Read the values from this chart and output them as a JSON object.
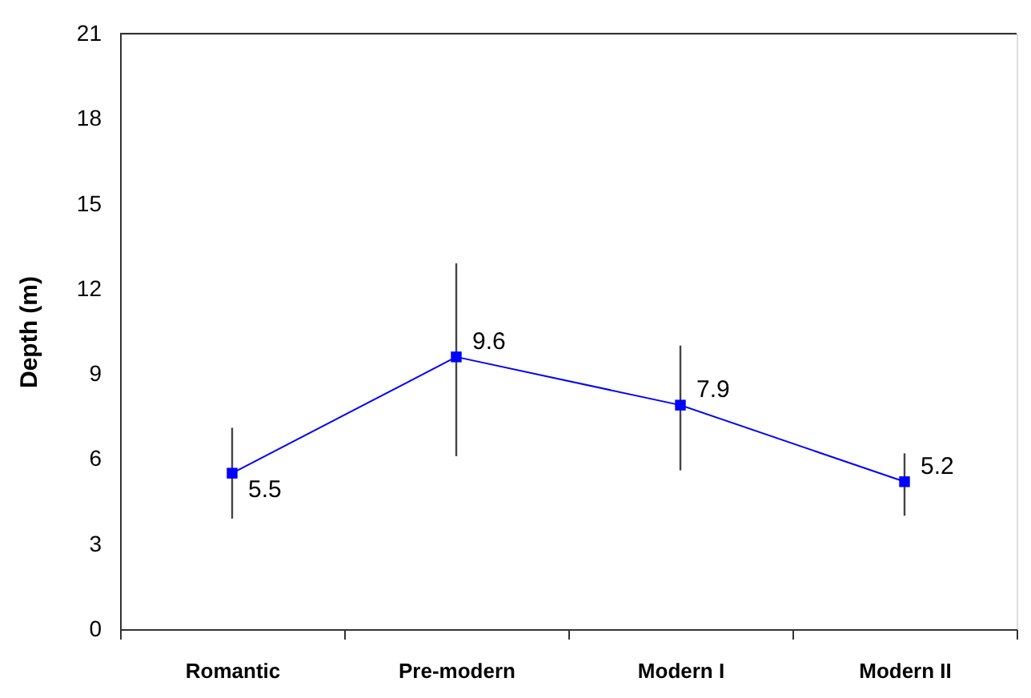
{
  "chart_data": {
    "type": "line",
    "ylabel": "Depth (m)",
    "categories": [
      "Romantic",
      "Pre-modern",
      "Modern I",
      "Modern II"
    ],
    "series": [
      {
        "color": "#0000ff",
        "values": [
          5.5,
          9.6,
          7.9,
          5.2
        ],
        "errors": [
          [
            3.9,
            7.1
          ],
          [
            6.1,
            12.9
          ],
          [
            5.6,
            10.0
          ],
          [
            4.0,
            6.2
          ]
        ]
      }
    ],
    "ylim": [
      0,
      21
    ],
    "yticks": [
      0,
      3,
      6,
      9,
      12,
      15,
      18,
      21
    ],
    "grid": false,
    "marker": "square",
    "line_style": "solid",
    "data_labels": true
  }
}
